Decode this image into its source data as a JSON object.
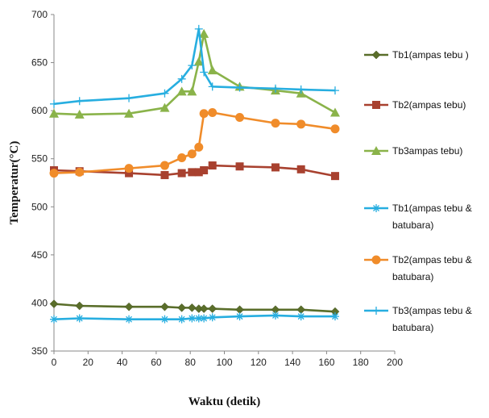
{
  "chart_data": {
    "type": "line",
    "xlabel": "Waktu (detik)",
    "ylabel": "Temperatur(°C)",
    "xlim": [
      0,
      200
    ],
    "ylim": [
      350,
      700
    ],
    "xticks": [
      0,
      20,
      40,
      60,
      80,
      100,
      120,
      140,
      160,
      180,
      200
    ],
    "yticks": [
      350,
      400,
      450,
      500,
      550,
      600,
      650,
      700
    ],
    "legend_position": "right",
    "series": [
      {
        "name": "Tb1(ampas tebu )",
        "marker": "diamond",
        "color": "#5a6e2a",
        "legend_lines": [
          "Tb1(ampas tebu )"
        ],
        "x": [
          0,
          15,
          44,
          65,
          75,
          81,
          85,
          88,
          93,
          109,
          130,
          145,
          165
        ],
        "y": [
          399,
          397,
          396,
          396,
          395,
          395,
          394,
          394,
          394,
          393,
          393,
          393,
          391
        ]
      },
      {
        "name": "Tb2(ampas tebu)",
        "marker": "square",
        "color": "#a8412f",
        "legend_lines": [
          "Tb2(ampas tebu)"
        ],
        "x": [
          0,
          15,
          44,
          65,
          75,
          81,
          85,
          88,
          93,
          109,
          130,
          145,
          165
        ],
        "y": [
          538,
          537,
          535,
          533,
          535,
          536,
          536,
          538,
          543,
          542,
          541,
          539,
          532
        ]
      },
      {
        "name": "Tb3ampas tebu)",
        "marker": "triangle",
        "color": "#8ab34a",
        "legend_lines": [
          "Tb3ampas tebu)"
        ],
        "x": [
          0,
          15,
          44,
          65,
          75,
          81,
          85,
          88,
          93,
          109,
          130,
          145,
          165
        ],
        "y": [
          597,
          596,
          597,
          603,
          620,
          620,
          651,
          680,
          642,
          625,
          621,
          618,
          598
        ]
      },
      {
        "name": "Tb1(ampas tebu & batubara)",
        "marker": "star",
        "color": "#27aee0",
        "legend_lines": [
          "Tb1(ampas tebu &",
          "batubara)"
        ],
        "x": [
          0,
          15,
          44,
          65,
          75,
          81,
          85,
          88,
          93,
          109,
          130,
          145,
          165
        ],
        "y": [
          383,
          384,
          383,
          383,
          383,
          384,
          384,
          384,
          385,
          386,
          387,
          386,
          386
        ]
      },
      {
        "name": "Tb2(ampas tebu & batubara)",
        "marker": "circle",
        "color": "#f08c2a",
        "legend_lines": [
          "Tb2(ampas tebu &",
          "batubara)"
        ],
        "x": [
          0,
          15,
          44,
          65,
          75,
          81,
          85,
          88,
          93,
          109,
          130,
          145,
          165
        ],
        "y": [
          535,
          536,
          540,
          543,
          551,
          555,
          562,
          597,
          598,
          593,
          587,
          586,
          581
        ]
      },
      {
        "name": "Tb3(ampas tebu & batubara)",
        "marker": "plus",
        "color": "#27aee0",
        "legend_lines": [
          "Tb3(ampas tebu &",
          "batubara)"
        ],
        "x": [
          0,
          15,
          44,
          65,
          75,
          81,
          85,
          88,
          93,
          109,
          130,
          145,
          165
        ],
        "y": [
          607,
          610,
          613,
          618,
          633,
          647,
          685,
          640,
          625,
          624,
          623,
          622,
          621
        ]
      }
    ]
  }
}
